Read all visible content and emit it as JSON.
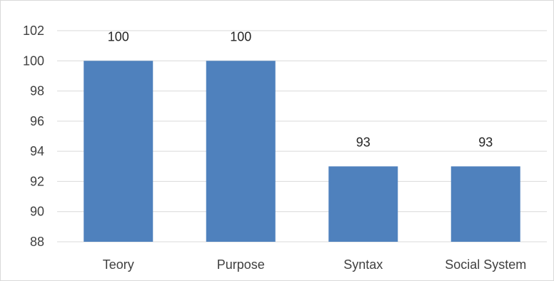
{
  "chart_data": {
    "type": "bar",
    "categories": [
      "Teory",
      "Purpose",
      "Syntax",
      "Social System"
    ],
    "values": [
      100,
      100,
      93,
      93
    ],
    "data_labels": [
      "100",
      "100",
      "93",
      "93"
    ],
    "title": "",
    "xlabel": "",
    "ylabel": "",
    "ylim": [
      88,
      102
    ],
    "yticks": [
      "88",
      "90",
      "92",
      "94",
      "96",
      "98",
      "100",
      "102"
    ],
    "grid": "horizontal",
    "legend": "none",
    "bar_color": "#4f81bd",
    "grid_color": "#d9d9d9"
  }
}
